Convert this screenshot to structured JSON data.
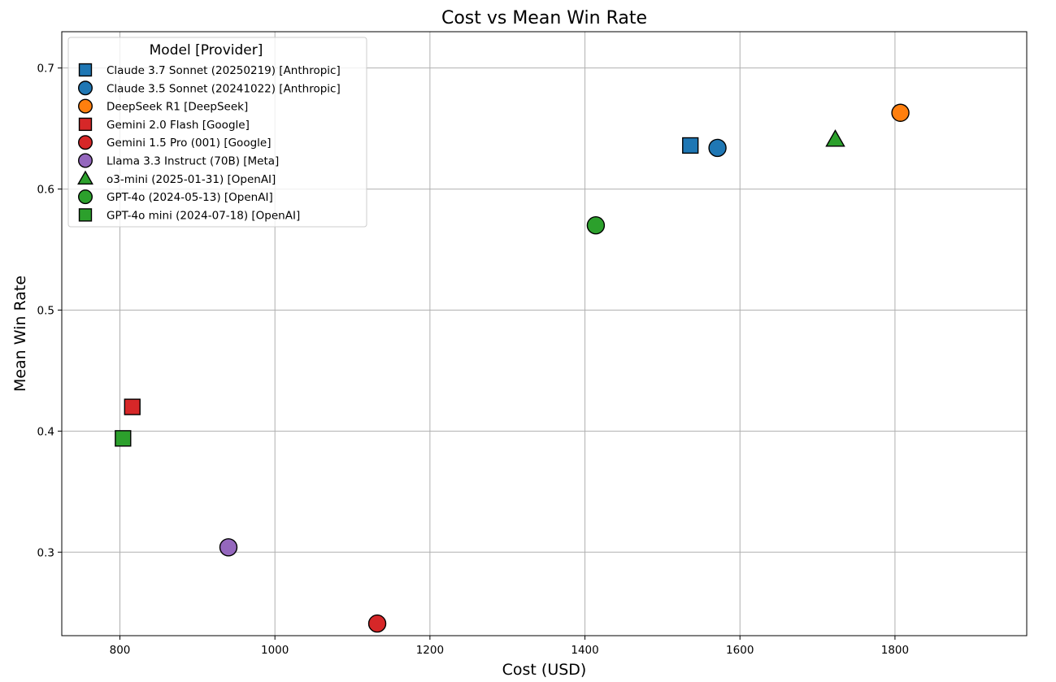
{
  "chart_data": {
    "type": "scatter",
    "title": "Cost vs Mean Win Rate",
    "xlabel": "Cost (USD)",
    "ylabel": "Mean Win Rate",
    "xlim": [
      725,
      1970
    ],
    "ylim": [
      0.231,
      0.73
    ],
    "xticks": [
      800,
      1000,
      1200,
      1400,
      1600,
      1800
    ],
    "yticks": [
      0.3,
      0.4,
      0.5,
      0.6,
      0.7
    ],
    "grid": true,
    "legend": {
      "title": "Model [Provider]",
      "placement": "top-left"
    },
    "series": [
      {
        "name": "Claude 3.7 Sonnet (20250219) [Anthropic]",
        "marker": "square",
        "color": "#1f77b4",
        "x": 1536,
        "y": 0.636
      },
      {
        "name": "Claude 3.5 Sonnet (20241022) [Anthropic]",
        "marker": "circle",
        "color": "#1f77b4",
        "x": 1571,
        "y": 0.634
      },
      {
        "name": "DeepSeek R1 [DeepSeek]",
        "marker": "circle",
        "color": "#ff7f0e",
        "x": 1807,
        "y": 0.663
      },
      {
        "name": "Gemini 2.0 Flash [Google]",
        "marker": "square",
        "color": "#d62728",
        "x": 816,
        "y": 0.42
      },
      {
        "name": "Gemini 1.5 Pro (001) [Google]",
        "marker": "circle",
        "color": "#d62728",
        "x": 1132,
        "y": 0.241
      },
      {
        "name": "Llama 3.3 Instruct (70B) [Meta]",
        "marker": "circle",
        "color": "#9467bd",
        "x": 940,
        "y": 0.304
      },
      {
        "name": "o3-mini (2025-01-31) [OpenAI]",
        "marker": "triangle",
        "color": "#2ca02c",
        "x": 1723,
        "y": 0.641
      },
      {
        "name": "GPT-4o (2024-05-13) [OpenAI]",
        "marker": "circle",
        "color": "#2ca02c",
        "x": 1414,
        "y": 0.57
      },
      {
        "name": "GPT-4o mini (2024-07-18) [OpenAI]",
        "marker": "square",
        "color": "#2ca02c",
        "x": 804,
        "y": 0.394
      }
    ]
  }
}
